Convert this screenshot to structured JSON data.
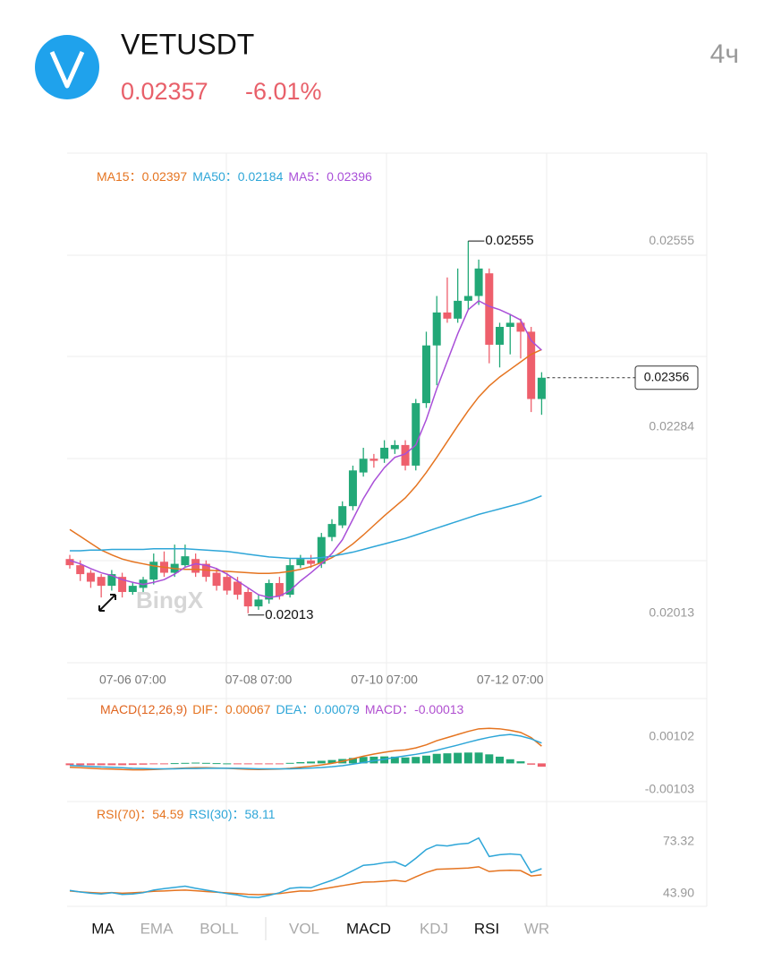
{
  "header": {
    "symbol": "VETUSDT",
    "price": "0.02357",
    "change": "-6.01%",
    "interval": "4ч"
  },
  "watermark": "BingX",
  "chart_data": [
    {
      "type": "candlestick",
      "x": [
        null,
        null,
        null,
        null,
        null,
        null,
        "07-06 07:00",
        null,
        null,
        null,
        null,
        null,
        null,
        null,
        null,
        null,
        null,
        null,
        "07-08 07:00",
        null,
        null,
        null,
        null,
        null,
        null,
        null,
        null,
        null,
        null,
        null,
        "07-10 07:00",
        null,
        null,
        null,
        null,
        null,
        null,
        null,
        null,
        null,
        null,
        null,
        "07-12 07:00",
        null,
        null,
        null
      ],
      "open": [
        0.02092,
        0.02083,
        0.02072,
        0.02066,
        0.02053,
        0.02066,
        0.02044,
        0.0205,
        0.02062,
        0.02088,
        0.02072,
        0.02083,
        0.02092,
        0.02085,
        0.02072,
        0.02066,
        0.02059,
        0.02044,
        0.02023,
        0.02033,
        0.02057,
        0.0204,
        0.02083,
        0.0209,
        0.02085,
        0.02124,
        0.02141,
        0.02169,
        0.02218,
        0.02238,
        0.02238,
        0.02252,
        0.02258,
        0.02228,
        0.02319,
        0.02403,
        0.02451,
        0.02442,
        0.02468,
        0.02475,
        0.02508,
        0.02404,
        0.0243,
        0.02436,
        0.02423,
        0.02325
      ],
      "high": [
        0.02098,
        0.0209,
        0.02076,
        0.0207,
        0.02076,
        0.02072,
        0.02059,
        0.02066,
        0.021,
        0.02103,
        0.02113,
        0.02113,
        0.021,
        0.0209,
        0.02079,
        0.02072,
        0.02066,
        0.0205,
        0.0204,
        0.02062,
        0.02066,
        0.02092,
        0.02098,
        0.02098,
        0.0213,
        0.0215,
        0.02176,
        0.02228,
        0.02254,
        0.02245,
        0.02265,
        0.02265,
        0.02265,
        0.02325,
        0.02423,
        0.02475,
        0.02502,
        0.02515,
        0.02555,
        0.02528,
        0.02515,
        0.02436,
        0.02449,
        0.02442,
        0.0243,
        0.02364
      ],
      "low": [
        0.02078,
        0.0206,
        0.0205,
        0.02036,
        0.02046,
        0.02036,
        0.0204,
        0.02044,
        0.02055,
        0.02066,
        0.02066,
        0.02079,
        0.02066,
        0.02059,
        0.02046,
        0.0204,
        0.02033,
        0.02013,
        0.02018,
        0.02027,
        0.02033,
        0.02036,
        0.02079,
        0.02079,
        0.02079,
        0.02118,
        0.02137,
        0.02163,
        0.02212,
        0.02225,
        0.02232,
        0.02245,
        0.02221,
        0.02221,
        0.02312,
        0.02345,
        0.02436,
        0.02436,
        0.02455,
        0.02462,
        0.02377,
        0.02371,
        0.0239,
        0.02384,
        0.02306,
        0.02302
      ],
      "close": [
        0.02083,
        0.0207,
        0.02059,
        0.02053,
        0.0207,
        0.02044,
        0.02053,
        0.02062,
        0.02088,
        0.02072,
        0.02085,
        0.02096,
        0.02072,
        0.02066,
        0.02053,
        0.02046,
        0.0204,
        0.02023,
        0.02033,
        0.02057,
        0.02038,
        0.02083,
        0.02092,
        0.02085,
        0.02124,
        0.02143,
        0.02169,
        0.02221,
        0.02238,
        0.02235,
        0.02254,
        0.02258,
        0.02228,
        0.02319,
        0.02403,
        0.02451,
        0.02442,
        0.02468,
        0.02475,
        0.02515,
        0.02404,
        0.0243,
        0.02436,
        0.02423,
        0.02325,
        0.02356
      ],
      "up_color": "#22a877",
      "down_color": "#ee5f6c",
      "series": [
        {
          "name": "MA15：",
          "color": "#e57420",
          "values": [
            0.02135,
            0.02125,
            0.02115,
            0.02105,
            0.02098,
            0.02092,
            0.02088,
            0.02085,
            0.02082,
            0.0208,
            0.02078,
            0.02077,
            0.02077,
            0.02076,
            0.02075,
            0.02074,
            0.02073,
            0.02072,
            0.02071,
            0.02071,
            0.02072,
            0.02074,
            0.02077,
            0.02081,
            0.02087,
            0.02094,
            0.02103,
            0.02114,
            0.02127,
            0.02141,
            0.02155,
            0.02168,
            0.02181,
            0.02198,
            0.02218,
            0.0224,
            0.02263,
            0.02286,
            0.02308,
            0.02328,
            0.02344,
            0.02357,
            0.02368,
            0.02379,
            0.0239,
            0.02397
          ]
        },
        {
          "name": "MA50：",
          "color": "#2ea6d8",
          "values": [
            0.02104,
            0.02104,
            0.02105,
            0.02105,
            0.02106,
            0.02106,
            0.02106,
            0.02106,
            0.02107,
            0.02107,
            0.02107,
            0.02107,
            0.02106,
            0.02105,
            0.02104,
            0.02103,
            0.02101,
            0.02099,
            0.02097,
            0.02095,
            0.02094,
            0.02093,
            0.02093,
            0.02093,
            0.02094,
            0.02096,
            0.02099,
            0.02102,
            0.02106,
            0.0211,
            0.02114,
            0.02118,
            0.02122,
            0.02127,
            0.02132,
            0.02137,
            0.02142,
            0.02147,
            0.02152,
            0.02157,
            0.02161,
            0.02165,
            0.02169,
            0.02173,
            0.02178,
            0.02184
          ]
        },
        {
          "name": "MA5：",
          "color": "#a94fd8",
          "values": [
            0.0209,
            0.02085,
            0.02078,
            0.02072,
            0.02068,
            0.02062,
            0.02058,
            0.02055,
            0.02058,
            0.02062,
            0.0207,
            0.0208,
            0.02085,
            0.02083,
            0.02078,
            0.0207,
            0.0206,
            0.0205,
            0.0204,
            0.02036,
            0.02038,
            0.02046,
            0.0206,
            0.02072,
            0.02085,
            0.021,
            0.0212,
            0.0215,
            0.0218,
            0.02205,
            0.02225,
            0.0224,
            0.02245,
            0.02258,
            0.02295,
            0.0234,
            0.0238,
            0.0242,
            0.02455,
            0.02468,
            0.0246,
            0.02455,
            0.02448,
            0.0244,
            0.0241,
            0.02396
          ]
        }
      ],
      "ylim": [
        0.01941,
        0.02683
      ],
      "yticks": [
        0.02013,
        0.02284,
        0.02555
      ]
    },
    {
      "type": "combo",
      "title": "MACD(12,26,9)",
      "title_color": "#e0651f",
      "series": [
        {
          "name": "DIF：",
          "color": "#e57420",
          "type": "line",
          "values": [
            -0.00015,
            -0.00017,
            -0.00019,
            -0.00021,
            -0.00022,
            -0.00024,
            -0.00025,
            -0.00025,
            -0.00024,
            -0.00022,
            -0.0002,
            -0.00018,
            -0.00017,
            -0.00017,
            -0.00018,
            -0.00019,
            -0.00021,
            -0.00023,
            -0.00024,
            -0.00023,
            -0.00022,
            -0.00019,
            -0.00015,
            -0.00011,
            -6e-05,
            0,
            8e-05,
            0.00018,
            0.00028,
            0.00036,
            0.00043,
            0.00049,
            0.00052,
            0.0006,
            0.00072,
            0.00088,
            0.001,
            0.00112,
            0.00124,
            0.00134,
            0.00136,
            0.00134,
            0.00128,
            0.0012,
            0.001,
            0.00067
          ]
        },
        {
          "name": "DEA：",
          "color": "#2ea6d8",
          "type": "line",
          "values": [
            -8e-05,
            -0.0001,
            -0.00012,
            -0.00014,
            -0.00015,
            -0.00017,
            -0.00019,
            -0.0002,
            -0.00021,
            -0.00021,
            -0.00021,
            -0.0002,
            -0.0002,
            -0.00019,
            -0.00019,
            -0.00019,
            -0.00019,
            -0.0002,
            -0.00021,
            -0.00021,
            -0.00021,
            -0.00021,
            -0.0002,
            -0.00018,
            -0.00016,
            -0.00013,
            -9e-05,
            -3e-05,
            3e-05,
            0.0001,
            0.00016,
            0.00023,
            0.00029,
            0.00035,
            0.00042,
            0.00051,
            0.00061,
            0.00071,
            0.00082,
            0.00092,
            0.00101,
            0.00108,
            0.00112,
            0.00106,
            0.00095,
            0.00079
          ]
        },
        {
          "name": "MACD：",
          "color": "#b04fd0",
          "type": "bar",
          "up_color": "#22a877",
          "down_color": "#ee5f6c",
          "values": [
            -7e-05,
            -7e-05,
            -7e-05,
            -7e-05,
            -7e-05,
            -7e-05,
            -6e-05,
            -5e-05,
            -3e-05,
            -1e-05,
            1e-05,
            2e-05,
            3e-05,
            2e-05,
            1e-05,
            0,
            -2e-05,
            -3e-05,
            -3e-05,
            -2e-05,
            -1e-05,
            2e-05,
            5e-05,
            7e-05,
            0.0001,
            0.00013,
            0.00017,
            0.00021,
            0.00025,
            0.00026,
            0.00027,
            0.00026,
            0.00023,
            0.00025,
            0.0003,
            0.00037,
            0.00039,
            0.00041,
            0.00042,
            0.00042,
            0.00035,
            0.00026,
            0.00016,
            8e-05,
            -5e-05,
            -0.00013
          ]
        }
      ],
      "ylim": [
        -0.00148,
        0.00182
      ],
      "yticks": [
        -0.00103,
        0.00102
      ]
    },
    {
      "type": "line",
      "series": [
        {
          "name": "RSI(70)：",
          "color": "#e57420",
          "values": [
            45.5,
            45,
            44.6,
            44.3,
            44.6,
            44.2,
            44.5,
            44.8,
            45.3,
            45.5,
            45.8,
            46,
            45.6,
            45.2,
            44.8,
            44.4,
            44,
            43.6,
            43.4,
            43.7,
            44,
            44.8,
            45.5,
            45.4,
            46.5,
            47.5,
            48.5,
            49.5,
            50.5,
            50.6,
            51,
            51.5,
            50.8,
            53.5,
            56,
            57.8,
            58,
            58.2,
            58.5,
            59.2,
            56.5,
            57,
            57.2,
            57,
            54,
            54.59
          ]
        },
        {
          "name": "RSI(30)：",
          "color": "#2ea6d8",
          "values": [
            45.8,
            44.9,
            44.2,
            43.8,
            44.5,
            43.5,
            43.8,
            44.5,
            46,
            46.8,
            47.5,
            48.2,
            47,
            46,
            45,
            44,
            43.2,
            42,
            41.8,
            43,
            44.5,
            47,
            47.5,
            47.3,
            49.5,
            51.5,
            54,
            57,
            60,
            60.5,
            61.5,
            62,
            59.5,
            64,
            69,
            71.5,
            71,
            72,
            72.5,
            75.5,
            65,
            66,
            66.5,
            66,
            56,
            58.11
          ]
        }
      ],
      "ylim": [
        36.8,
        80.93
      ],
      "yticks": [
        {
          "value": 43.9,
          "label": "43.90"
        },
        73.32
      ]
    }
  ],
  "tabs": [
    {
      "label": "MA",
      "active": true
    },
    {
      "label": "EMA",
      "active": false
    },
    {
      "label": "BOLL",
      "active": false
    },
    {
      "label": "VOL",
      "active": false
    },
    {
      "label": "MACD",
      "active": true
    },
    {
      "label": "KDJ",
      "active": false
    },
    {
      "label": "RSI",
      "active": true
    },
    {
      "label": "WR",
      "active": false
    }
  ]
}
